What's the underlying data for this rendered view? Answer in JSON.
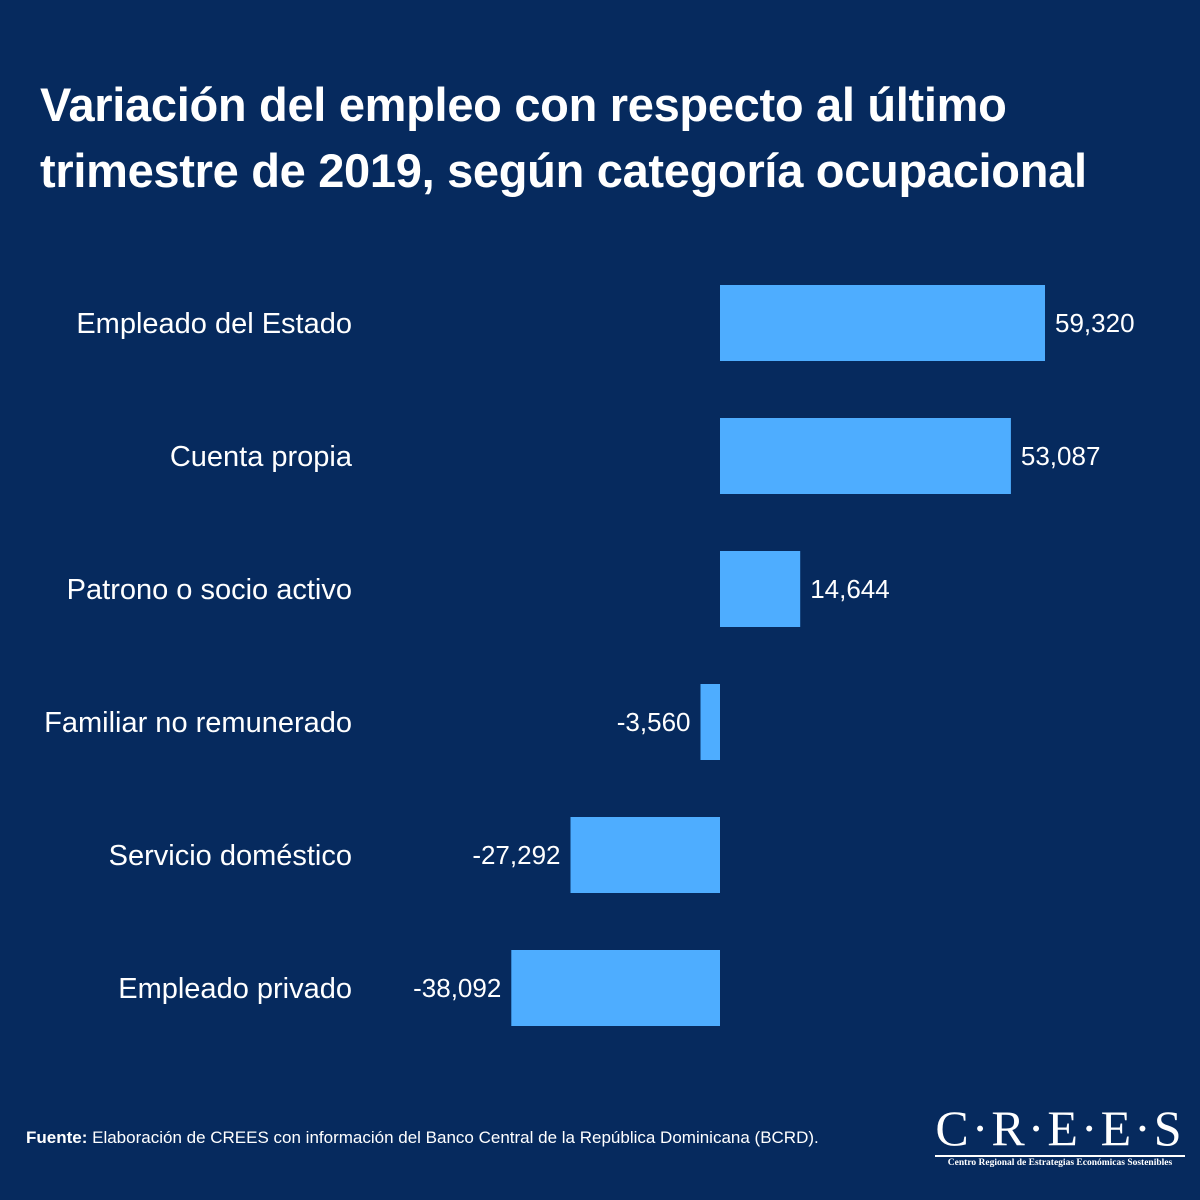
{
  "chart_data": {
    "type": "bar",
    "orientation": "horizontal",
    "title": "Variación del empleo con respecto al último trimestre de 2019, según categoría ocupacional",
    "title_lines": [
      "Variación del empleo con respecto al último",
      "trimestre de 2019, según categoría ocupacional"
    ],
    "categories": [
      "Empleado del Estado",
      "Cuenta propia",
      "Patrono o socio activo",
      "Familiar no remunerado",
      "Servicio doméstico",
      "Empleado privado"
    ],
    "values": [
      59320,
      53087,
      14644,
      -3560,
      -27292,
      -38092
    ],
    "value_labels": [
      "59,320",
      "53,087",
      "14,644",
      "-3,560",
      "-27,292",
      "-38,092"
    ],
    "bar_color": "#4eadff",
    "xlabel": "",
    "ylabel": "",
    "grid": false,
    "legend": "none"
  },
  "footer": {
    "source_label": "Fuente:",
    "source_text": " Elaboración de CREES con información del Banco Central de la República Dominicana (BCRD)."
  },
  "logo": {
    "name": "C·R·E·E·S",
    "subtitle": "Centro Regional de Estrategias Económicas Sostenibles"
  },
  "colors": {
    "background": "#062a5e",
    "text": "#ffffff",
    "bar": "#4eadff"
  }
}
